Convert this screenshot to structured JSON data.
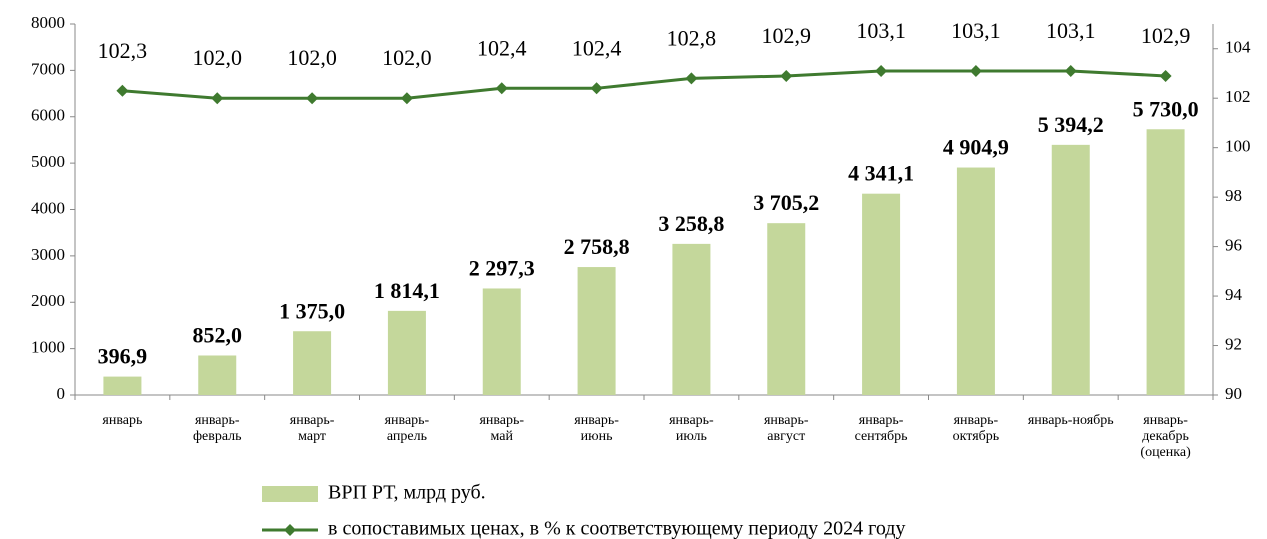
{
  "chart_data": {
    "type": "bar+line",
    "categories": [
      "январь",
      "январь-\nфевраль",
      "январь-\nмарт",
      "январь-\nапрель",
      "январь-\nмай",
      "январь-\nиюнь",
      "январь-\nиюль",
      "январь-\nавгуст",
      "январь-\nсентябрь",
      "январь-\nоктябрь",
      "январь-ноябрь",
      "январь-\nдекабрь\n(оценка)"
    ],
    "series": [
      {
        "name": "ВРП РТ, млрд руб.",
        "type": "bar",
        "color": "#c4d79b",
        "values": [
          396.9,
          852.0,
          1375.0,
          1814.1,
          2297.3,
          2758.8,
          3258.8,
          3705.2,
          4341.1,
          4904.9,
          5394.2,
          5730.0
        ],
        "value_labels": [
          "396,9",
          "852,0",
          "1 375,0",
          "1 814,1",
          "2 297,3",
          "2 758,8",
          "3 258,8",
          "3 705,2",
          "4 341,1",
          "4 904,9",
          "5 394,2",
          "5 730,0"
        ]
      },
      {
        "name": "в сопоставимых ценах, в % к соответствующему периоду 2024 году",
        "type": "line",
        "axis": "y2",
        "color": "#3f7a2f",
        "values": [
          102.3,
          102.0,
          102.0,
          102.0,
          102.4,
          102.4,
          102.8,
          102.9,
          103.1,
          103.1,
          103.1,
          102.9
        ],
        "value_labels": [
          "102,3",
          "102,0",
          "102,0",
          "102,0",
          "102,4",
          "102,4",
          "102,8",
          "102,9",
          "103,1",
          "103,1",
          "103,1",
          "102,9"
        ]
      }
    ],
    "ylim": [
      0,
      8000
    ],
    "yticks": [
      0,
      1000,
      2000,
      3000,
      4000,
      5000,
      6000,
      7000,
      8000
    ],
    "y2lim": [
      90,
      105
    ],
    "y2ticks": [
      90,
      92,
      94,
      96,
      98,
      100,
      102,
      104
    ],
    "legend": "bottom"
  }
}
